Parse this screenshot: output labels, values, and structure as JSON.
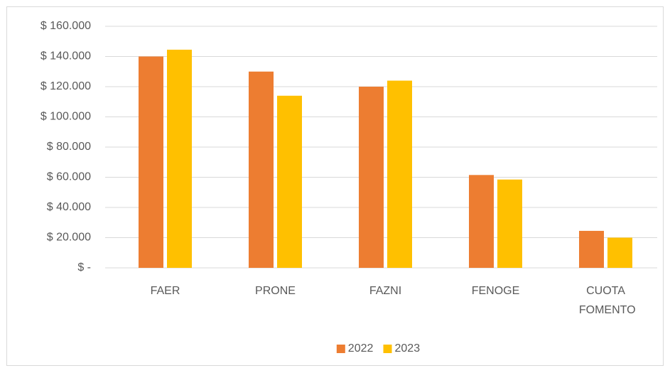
{
  "chart_data": {
    "type": "bar",
    "categories": [
      "FAER",
      "PRONE",
      "FAZNI",
      "FENOGE",
      "CUOTA FOMENTO"
    ],
    "series": [
      {
        "name": "2022",
        "color": "#ED7D31",
        "values": [
          140000,
          130000,
          120000,
          61500,
          24500
        ]
      },
      {
        "name": "2023",
        "color": "#FFC000",
        "values": [
          144500,
          114000,
          124000,
          58500,
          20000
        ]
      }
    ],
    "ylim": [
      0,
      160000
    ],
    "yticks": [
      {
        "value": 0,
        "label": "$ -"
      },
      {
        "value": 20000,
        "label": "$ 20.000"
      },
      {
        "value": 40000,
        "label": "$ 40.000"
      },
      {
        "value": 60000,
        "label": "$ 60.000"
      },
      {
        "value": 80000,
        "label": "$ 80.000"
      },
      {
        "value": 100000,
        "label": "$ 100.000"
      },
      {
        "value": 120000,
        "label": "$ 120.000"
      },
      {
        "value": 140000,
        "label": "$ 140.000"
      },
      {
        "value": 160000,
        "label": "$ 160.000"
      }
    ],
    "grid": true,
    "legend": "bottom"
  }
}
